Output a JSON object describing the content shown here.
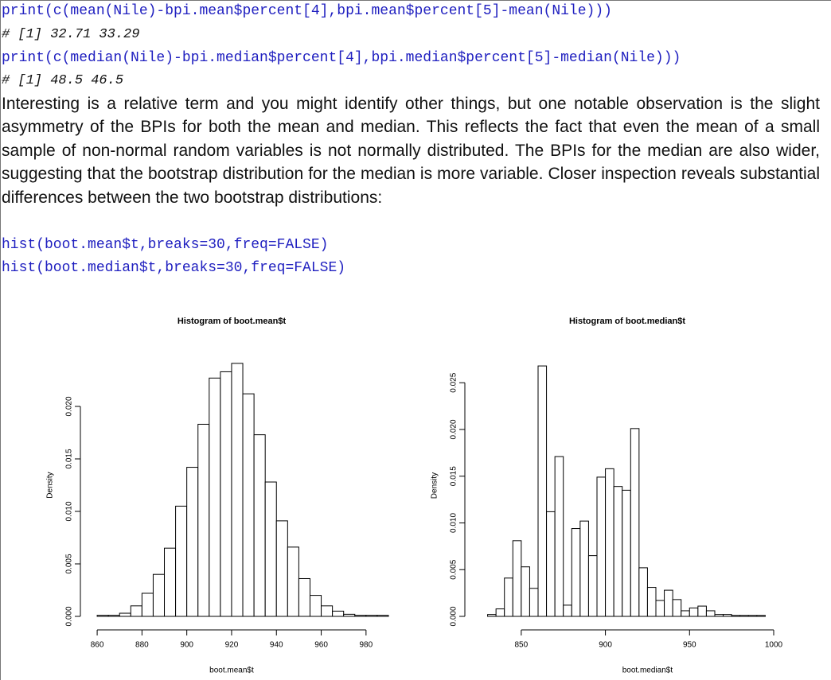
{
  "document": {
    "code": [
      "print(c(mean(Nile)-bpi.mean$percent[4],bpi.mean$percent[5]-mean(Nile)))",
      "print(c(median(Nile)-bpi.median$percent[4],bpi.median$percent[5]-median(Nile)))",
      "hist(boot.mean$t,breaks=30,freq=FALSE)",
      "hist(boot.median$t,breaks=30,freq=FALSE)"
    ],
    "outputs": [
      "# [1] 32.71 33.29",
      "# [1] 48.5 46.5"
    ],
    "paragraph": "Interesting is a relative term and you might identify other things, but one notable observation is the slight asymmetry of the BPIs for both the mean and median. This reflects the fact that even the mean of a small sample of non-normal random variables is not normally distributed. The BPIs for the median are also wider, suggesting that the bootstrap distribution for the median is more variable. Closer inspection reveals substantial differences between the two bootstrap distributions:"
  },
  "chart_data": [
    {
      "type": "histogram",
      "title": "Histogram of boot.mean$t",
      "xlabel": "boot.mean$t",
      "ylabel": "Density",
      "color": "#ffffff",
      "bins": [
        860,
        865,
        870,
        875,
        880,
        885,
        890,
        895,
        900,
        905,
        910,
        915,
        920,
        925,
        930,
        935,
        940,
        945,
        950,
        955,
        960,
        965,
        970,
        975,
        980,
        985,
        990
      ],
      "values": [
        0.0001,
        0.0001,
        0.0003,
        0.001,
        0.0022,
        0.004,
        0.0065,
        0.0105,
        0.0142,
        0.0183,
        0.0227,
        0.0233,
        0.0241,
        0.0212,
        0.0173,
        0.0128,
        0.0091,
        0.0066,
        0.0036,
        0.002,
        0.001,
        0.0005,
        0.0002,
        0.0001,
        0.0001,
        0.0001
      ],
      "xlim": [
        855,
        990
      ],
      "ylim": [
        0,
        0.025
      ],
      "xticks": [
        860,
        880,
        900,
        920,
        940,
        960,
        980
      ],
      "yticks": [
        {
          "value": 0,
          "label": "0.000"
        },
        {
          "value": 0.005,
          "label": "0.005"
        },
        {
          "value": 0.01,
          "label": "0.010"
        },
        {
          "value": 0.015,
          "label": "0.015"
        },
        {
          "value": 0.02,
          "label": "0.020"
        }
      ]
    },
    {
      "type": "histogram",
      "title": "Histogram of boot.median$t",
      "xlabel": "boot.median$t",
      "ylabel": "Density",
      "color": "#ffffff",
      "bins": [
        830,
        835,
        840,
        845,
        850,
        855,
        860,
        865,
        870,
        875,
        880,
        885,
        890,
        895,
        900,
        905,
        910,
        915,
        920,
        925,
        930,
        935,
        940,
        945,
        950,
        955,
        960,
        965,
        970,
        975,
        980,
        985,
        990,
        995
      ],
      "values": [
        0.0002,
        0.0008,
        0.0041,
        0.0081,
        0.0053,
        0.003,
        0.0268,
        0.0112,
        0.0171,
        0.0012,
        0.0094,
        0.0102,
        0.0065,
        0.0149,
        0.0158,
        0.0139,
        0.0135,
        0.0201,
        0.0052,
        0.0031,
        0.0017,
        0.0028,
        0.0018,
        0.0006,
        0.0009,
        0.0011,
        0.0006,
        0.0002,
        0.0002,
        0.0001,
        0.0001,
        0.0001,
        0.0001
      ],
      "xlim": [
        825,
        1000
      ],
      "ylim": [
        0,
        0.028
      ],
      "xticks": [
        850,
        900,
        950,
        1000
      ],
      "yticks": [
        {
          "value": 0,
          "label": "0.000"
        },
        {
          "value": 0.005,
          "label": "0.005"
        },
        {
          "value": 0.01,
          "label": "0.010"
        },
        {
          "value": 0.015,
          "label": "0.015"
        },
        {
          "value": 0.02,
          "label": "0.020"
        },
        {
          "value": 0.025,
          "label": "0.025"
        }
      ]
    }
  ]
}
